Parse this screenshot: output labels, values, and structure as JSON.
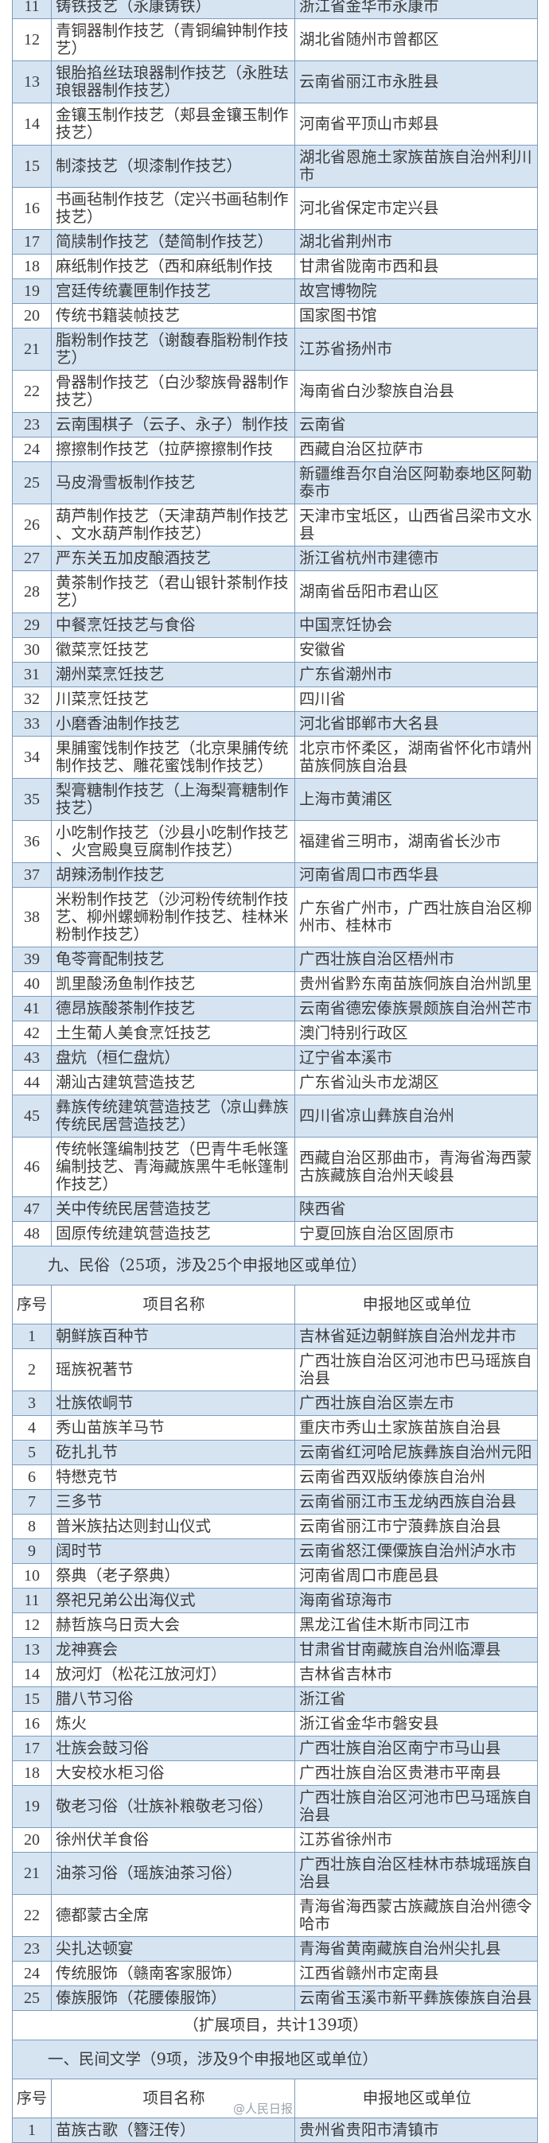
{
  "colors": {
    "row_blue": "#d6e4f2",
    "border": "#7d9bbd"
  },
  "part1_rows": [
    [
      "11",
      "铸铁技艺（永康铸铁）",
      "浙江省金华市永康市"
    ],
    [
      "12",
      "青铜器制作技艺（青铜编钟制作技艺）",
      "湖北省随州市曾都区"
    ],
    [
      "13",
      "银胎掐丝珐琅器制作技艺（永胜珐琅银器制作技艺）",
      "云南省丽江市永胜县"
    ],
    [
      "14",
      "金镶玉制作技艺（郏县金镶玉制作技艺）",
      "河南省平顶山市郏县"
    ],
    [
      "15",
      "制漆技艺（坝漆制作技艺）",
      "湖北省恩施土家族苗族自治州利川市"
    ],
    [
      "16",
      "书画毡制作技艺（定兴书画毡制作技艺）",
      "河北省保定市定兴县"
    ],
    [
      "17",
      "简牍制作技艺（楚简制作技艺）",
      "湖北省荆州市"
    ],
    [
      "18",
      "麻纸制作技艺（西和麻纸制作技",
      "甘肃省陇南市西和县"
    ],
    [
      "19",
      "宫廷传统囊匣制作技艺",
      "故宫博物院"
    ],
    [
      "20",
      "传统书籍装帧技艺",
      "国家图书馆"
    ],
    [
      "21",
      "脂粉制作技艺（谢馥春脂粉制作技艺）",
      "江苏省扬州市"
    ],
    [
      "22",
      "骨器制作技艺（白沙黎族骨器制作技艺）",
      "海南省白沙黎族自治县"
    ],
    [
      "23",
      "云南围棋子（云子、永子）制作技",
      "云南省"
    ],
    [
      "24",
      "擦擦制作技艺（拉萨擦擦制作技",
      "西藏自治区拉萨市"
    ],
    [
      "25",
      "马皮滑雪板制作技艺",
      "新疆维吾尔自治区阿勒泰地区阿勒泰市"
    ],
    [
      "26",
      "葫芦制作技艺（天津葫芦制作技艺、文水葫芦制作技艺）",
      "天津市宝坻区，山西省吕梁市文水县"
    ],
    [
      "27",
      "严东关五加皮酿酒技艺",
      "浙江省杭州市建德市"
    ],
    [
      "28",
      "黄茶制作技艺（君山银针茶制作技艺）",
      "湖南省岳阳市君山区"
    ],
    [
      "29",
      "中餐烹饪技艺与食俗",
      "中国烹饪协会"
    ],
    [
      "30",
      "徽菜烹饪技艺",
      "安徽省"
    ],
    [
      "31",
      "潮州菜烹饪技艺",
      "广东省潮州市"
    ],
    [
      "32",
      "川菜烹饪技艺",
      "四川省"
    ],
    [
      "33",
      "小磨香油制作技艺",
      "河北省邯郸市大名县"
    ],
    [
      "34",
      "果脯蜜饯制作技艺（北京果脯传统制作技艺、雕花蜜饯制作技艺）",
      "北京市怀柔区，湖南省怀化市靖州苗族侗族自治县"
    ],
    [
      "35",
      "梨膏糖制作技艺（上海梨膏糖制作技艺）",
      "上海市黄浦区"
    ],
    [
      "36",
      "小吃制作技艺（沙县小吃制作技艺、火宫殿臭豆腐制作技艺）",
      "福建省三明市，湖南省长沙市"
    ],
    [
      "37",
      "胡辣汤制作技艺",
      "河南省周口市西华县"
    ],
    [
      "38",
      "米粉制作技艺（沙河粉传统制作技艺、柳州螺蛳粉制作技艺、桂林米粉制作技艺）",
      "广东省广州市，广西壮族自治区柳州市、桂林市"
    ],
    [
      "39",
      "龟苓膏配制技艺",
      "广西壮族自治区梧州市"
    ],
    [
      "40",
      "凯里酸汤鱼制作技艺",
      "贵州省黔东南苗族侗族自治州凯里"
    ],
    [
      "41",
      "德昂族酸茶制作技艺",
      "云南省德宏傣族景颇族自治州芒市"
    ],
    [
      "42",
      "土生葡人美食烹饪技艺",
      "澳门特别行政区"
    ],
    [
      "43",
      "盘炕（桓仁盘炕）",
      "辽宁省本溪市"
    ],
    [
      "44",
      "潮汕古建筑营造技艺",
      "广东省汕头市龙湖区"
    ],
    [
      "45",
      "彝族传统建筑营造技艺（凉山彝族传统民居营造技艺）",
      "四川省凉山彝族自治州"
    ],
    [
      "46",
      "传统帐篷编制技艺（巴青牛毛帐篷编制技艺、青海藏族黑牛毛帐篷制作技艺）",
      "西藏自治区那曲市，青海省海西蒙古族藏族自治州天峻县"
    ],
    [
      "47",
      "关中传统民居营造技艺",
      "陕西省"
    ],
    [
      "48",
      "固原传统建筑营造技艺",
      "宁夏回族自治区固原市"
    ]
  ],
  "section_folk_custom": "九、民俗（25项，涉及25个申报地区或单位）",
  "headers": {
    "num": "序号",
    "name": "项目名称",
    "region": "申报地区或单位"
  },
  "part2_rows": [
    [
      "1",
      "朝鲜族百种节",
      "吉林省延边朝鲜族自治州龙井市"
    ],
    [
      "2",
      "瑶族祝著节",
      "广西壮族自治区河池市巴马瑶族自治县"
    ],
    [
      "3",
      "壮族侬峒节",
      "广西壮族自治区崇左市"
    ],
    [
      "4",
      "秀山苗族羊马节",
      "重庆市秀山土家族苗族自治县"
    ],
    [
      "5",
      "矻扎扎节",
      "云南省红河哈尼族彝族自治州元阳"
    ],
    [
      "6",
      "特懋克节",
      "云南省西双版纳傣族自治州"
    ],
    [
      "7",
      "三多节",
      "云南省丽江市玉龙纳西族自治县"
    ],
    [
      "8",
      "普米族拈达则封山仪式",
      "云南省丽江市宁蒗彝族自治县"
    ],
    [
      "9",
      "阔时节",
      "云南省怒江傈僳族自治州泸水市"
    ],
    [
      "10",
      "祭典（老子祭典）",
      "河南省周口市鹿邑县"
    ],
    [
      "11",
      "祭祀兄弟公出海仪式",
      "海南省琼海市"
    ],
    [
      "12",
      "赫哲族乌日贡大会",
      "黑龙江省佳木斯市同江市"
    ],
    [
      "13",
      "龙神赛会",
      "甘肃省甘南藏族自治州临潭县"
    ],
    [
      "14",
      "放河灯（松花江放河灯）",
      "吉林省吉林市"
    ],
    [
      "15",
      "腊八节习俗",
      "浙江省"
    ],
    [
      "16",
      "炼火",
      "浙江省金华市磐安县"
    ],
    [
      "17",
      "壮族会鼓习俗",
      "广西壮族自治区南宁市马山县"
    ],
    [
      "18",
      "大安校水柜习俗",
      "广西壮族自治区贵港市平南县"
    ],
    [
      "19",
      "敬老习俗（壮族补粮敬老习俗）",
      "广西壮族自治区河池市巴马瑶族自治县"
    ],
    [
      "20",
      "徐州伏羊食俗",
      "江苏省徐州市"
    ],
    [
      "21",
      "油茶习俗（瑶族油茶习俗）",
      "广西壮族自治区桂林市恭城瑶族自治县"
    ],
    [
      "22",
      "德都蒙古全席",
      "青海省海西蒙古族藏族自治州德令哈市"
    ],
    [
      "23",
      "尖扎达顿宴",
      "青海省黄南藏族自治州尖扎县"
    ],
    [
      "24",
      "传统服饰（赣南客家服饰）",
      "江西省赣州市定南县"
    ],
    [
      "25",
      "傣族服饰（花腰傣服饰）",
      "云南省玉溪市新平彝族傣族自治县"
    ]
  ],
  "expansion_title": "（扩展项目，共计139项）",
  "section_folk_literature": "一、民间文学（9项，涉及9个申报地区或单位）",
  "part3_rows": [
    [
      "1",
      "苗族古歌（簪汪传）",
      "贵州省贵阳市清镇市"
    ]
  ],
  "watermark": "@人民日报"
}
